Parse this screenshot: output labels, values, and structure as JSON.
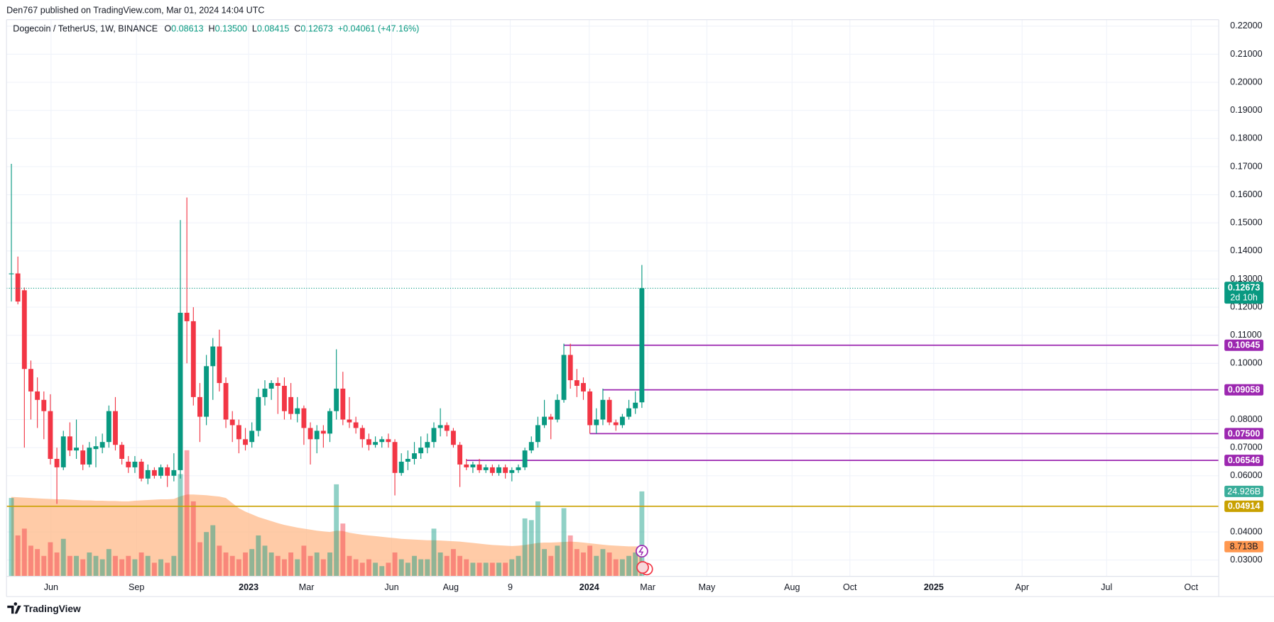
{
  "header": {
    "published": "Den767 published on TradingView.com, Mar 01, 2024 14:04 UTC"
  },
  "chart_data": {
    "type": "candlestick",
    "legend": {
      "symbol": "Dogecoin / TetherUS, 1W, BINANCE",
      "items": [
        {
          "key": "O",
          "value": "0.08613"
        },
        {
          "key": "H",
          "value": "0.13500"
        },
        {
          "key": "L",
          "value": "0.08415"
        },
        {
          "key": "C",
          "value": "0.12673"
        }
      ],
      "change": "+0.04061 (+47.16%)"
    },
    "up_color": "#089981",
    "down_color": "#f23645",
    "candles": {
      "open": [
        0.132,
        0.132,
        0.126,
        0.098,
        0.09,
        0.087,
        0.083,
        0.066,
        0.063,
        0.074,
        0.069,
        0.069,
        0.064,
        0.0695,
        0.07,
        0.072,
        0.083,
        0.071,
        0.065,
        0.063,
        0.065,
        0.059,
        0.062,
        0.06,
        0.063,
        0.06,
        0.062,
        0.118,
        0.115,
        0.088,
        0.081,
        0.099,
        0.106,
        0.093,
        0.08,
        0.078,
        0.073,
        0.072,
        0.076,
        0.088,
        0.091,
        0.093,
        0.092,
        0.088,
        0.082,
        0.084,
        0.077,
        0.073,
        0.076,
        0.075,
        0.083,
        0.091,
        0.08,
        0.079,
        0.077,
        0.073,
        0.071,
        0.072,
        0.073,
        0.072,
        0.061,
        0.065,
        0.066,
        0.068,
        0.07,
        0.072,
        0.077,
        0.078,
        0.076,
        0.071,
        0.064,
        0.063,
        0.064,
        0.062,
        0.063,
        0.061,
        0.063,
        0.061,
        0.062,
        0.063,
        0.069,
        0.072,
        0.078,
        0.081,
        0.08,
        0.087,
        0.103,
        0.094,
        0.093,
        0.09,
        0.078,
        0.08,
        0.087,
        0.079,
        0.078,
        0.081,
        0.084,
        0.08613
      ],
      "high": [
        0.171,
        0.138,
        0.127,
        0.101,
        0.095,
        0.09,
        0.089,
        0.07,
        0.076,
        0.079,
        0.08,
        0.071,
        0.072,
        0.074,
        0.075,
        0.085,
        0.088,
        0.072,
        0.067,
        0.067,
        0.066,
        0.064,
        0.063,
        0.064,
        0.064,
        0.068,
        0.151,
        0.159,
        0.12,
        0.093,
        0.103,
        0.109,
        0.112,
        0.095,
        0.083,
        0.08,
        0.077,
        0.079,
        0.091,
        0.094,
        0.094,
        0.095,
        0.095,
        0.093,
        0.088,
        0.085,
        0.079,
        0.078,
        0.078,
        0.084,
        0.105,
        0.097,
        0.088,
        0.081,
        0.078,
        0.075,
        0.074,
        0.074,
        0.075,
        0.073,
        0.068,
        0.069,
        0.072,
        0.074,
        0.075,
        0.079,
        0.084,
        0.079,
        0.077,
        0.072,
        0.066,
        0.065,
        0.066,
        0.064,
        0.064,
        0.064,
        0.064,
        0.063,
        0.064,
        0.07,
        0.074,
        0.081,
        0.087,
        0.082,
        0.089,
        0.107,
        0.107,
        0.098,
        0.095,
        0.091,
        0.084,
        0.091,
        0.088,
        0.08,
        0.082,
        0.087,
        0.09,
        0.135
      ],
      "low": [
        0.122,
        0.121,
        0.07,
        0.08,
        0.077,
        0.073,
        0.064,
        0.05,
        0.062,
        0.067,
        0.066,
        0.062,
        0.063,
        0.063,
        0.068,
        0.07,
        0.069,
        0.064,
        0.061,
        0.061,
        0.058,
        0.057,
        0.059,
        0.059,
        0.056,
        0.058,
        0.059,
        0.1,
        0.085,
        0.072,
        0.078,
        0.087,
        0.09,
        0.077,
        0.072,
        0.068,
        0.069,
        0.07,
        0.074,
        0.085,
        0.087,
        0.082,
        0.08,
        0.08,
        0.079,
        0.071,
        0.064,
        0.068,
        0.07,
        0.072,
        0.08,
        0.078,
        0.077,
        0.075,
        0.07,
        0.069,
        0.07,
        0.07,
        0.07,
        0.053,
        0.06,
        0.062,
        0.064,
        0.066,
        0.068,
        0.07,
        0.074,
        0.074,
        0.07,
        0.056,
        0.062,
        0.061,
        0.061,
        0.061,
        0.06,
        0.06,
        0.059,
        0.058,
        0.061,
        0.062,
        0.068,
        0.07,
        0.077,
        0.073,
        0.079,
        0.086,
        0.091,
        0.088,
        0.087,
        0.075,
        0.075,
        0.078,
        0.078,
        0.076,
        0.077,
        0.08,
        0.082,
        0.08415
      ],
      "close": [
        0.132,
        0.122,
        0.098,
        0.09,
        0.087,
        0.083,
        0.066,
        0.063,
        0.074,
        0.069,
        0.07,
        0.064,
        0.07,
        0.0705,
        0.072,
        0.083,
        0.071,
        0.066,
        0.063,
        0.065,
        0.059,
        0.062,
        0.06,
        0.063,
        0.06,
        0.062,
        0.118,
        0.115,
        0.088,
        0.081,
        0.099,
        0.106,
        0.093,
        0.08,
        0.078,
        0.073,
        0.071,
        0.076,
        0.088,
        0.091,
        0.093,
        0.092,
        0.083,
        0.082,
        0.084,
        0.077,
        0.073,
        0.076,
        0.075,
        0.083,
        0.091,
        0.08,
        0.079,
        0.077,
        0.073,
        0.071,
        0.072,
        0.073,
        0.072,
        0.061,
        0.065,
        0.066,
        0.068,
        0.07,
        0.072,
        0.077,
        0.078,
        0.076,
        0.071,
        0.064,
        0.063,
        0.064,
        0.062,
        0.063,
        0.061,
        0.063,
        0.061,
        0.062,
        0.063,
        0.069,
        0.072,
        0.078,
        0.081,
        0.08,
        0.087,
        0.103,
        0.094,
        0.092,
        0.09,
        0.078,
        0.08,
        0.087,
        0.079,
        0.078,
        0.081,
        0.084,
        0.086,
        0.12673
      ]
    },
    "volume": [
      23,
      12,
      14,
      9,
      8,
      6,
      10,
      7,
      11,
      6,
      6,
      5,
      7,
      6,
      5,
      8,
      6,
      5,
      6,
      5,
      7,
      6,
      4,
      5,
      4,
      6,
      30,
      37,
      22,
      10,
      13,
      15,
      9,
      7,
      6,
      5,
      7,
      8,
      12,
      9,
      7,
      6,
      5,
      7,
      5,
      9,
      6,
      7,
      5,
      7,
      27,
      15.5,
      6,
      5,
      4,
      5,
      4,
      3,
      4,
      7,
      5,
      4,
      6,
      5,
      5,
      14,
      7,
      6,
      8,
      6,
      5,
      4,
      4,
      4,
      4,
      4,
      4,
      5,
      6,
      17,
      16.5,
      22,
      8,
      6,
      9,
      20,
      12,
      8,
      7,
      9,
      6,
      8,
      7,
      5,
      5,
      6,
      7,
      24.926
    ],
    "volume_ma": [
      23.3,
      23.2,
      23.1,
      23,
      22.9,
      22.8,
      22.7,
      22.6,
      22.6,
      22.5,
      22.4,
      22.3,
      22.3,
      22.2,
      22.2,
      22.1,
      22.1,
      22,
      22,
      22.2,
      22.3,
      22.4,
      22.5,
      22.6,
      22.6,
      22.7,
      23.5,
      24,
      24,
      23.9,
      23.8,
      23.6,
      23.4,
      23,
      21.5,
      20,
      19,
      18.2,
      17.4,
      16.8,
      16.2,
      15.6,
      15.1,
      14.7,
      14.3,
      14,
      13.7,
      13.4,
      13.2,
      13,
      13.4,
      13.3,
      12.8,
      12.5,
      12.2,
      12,
      11.8,
      11.6,
      11.4,
      11.2,
      11,
      10.9,
      10.8,
      10.7,
      10.6,
      10.6,
      10.5,
      10.4,
      10.3,
      10.2,
      10,
      9.8,
      9.6,
      9.4,
      9.2,
      9.1,
      9,
      8.9,
      9,
      9.2,
      9.5,
      9.8,
      9.9,
      9.9,
      10,
      10.1,
      10.2,
      10.1,
      9.9,
      9.7,
      9.5,
      9.3,
      9.1,
      9,
      8.9,
      8.8,
      8.8,
      8.713
    ],
    "volume_ma_color": "#ffb98a",
    "volume_last_label": "24.926B",
    "volume_ma_last_label": "8.713B",
    "last_price": {
      "value": 0.12673,
      "label": "0.12673",
      "countdown": "2d 10h"
    },
    "levels": [
      {
        "value": 0.10645,
        "label": "0.10645",
        "from": 85,
        "color": "#9c27b0"
      },
      {
        "value": 0.09058,
        "label": "0.09058",
        "from": 91,
        "color": "#9c27b0"
      },
      {
        "value": 0.075,
        "label": "0.07500",
        "from": 89,
        "color": "#9c27b0"
      },
      {
        "value": 0.06546,
        "label": "0.06546",
        "from": 70,
        "color": "#9c27b0"
      },
      {
        "value": 0.04914,
        "label": "0.04914",
        "from": -0.75,
        "color": "#c9a100"
      }
    ],
    "xlim": [
      -0.75,
      185.75
    ],
    "xticks": [
      {
        "value": 6.1,
        "label": "Jun"
      },
      {
        "value": 19.25,
        "label": "Sep"
      },
      {
        "value": 36.5,
        "label": "2023"
      },
      {
        "value": 45.4,
        "label": "Mar"
      },
      {
        "value": 58.5,
        "label": "Jun"
      },
      {
        "value": 67.6,
        "label": "Aug"
      },
      {
        "value": 76.75,
        "label": "9"
      },
      {
        "value": 88.9,
        "label": "2024"
      },
      {
        "value": 97.9,
        "label": "Mar"
      },
      {
        "value": 107,
        "label": "May"
      },
      {
        "value": 120.1,
        "label": "Aug"
      },
      {
        "value": 129,
        "label": "Oct"
      },
      {
        "value": 141.9,
        "label": "2025"
      },
      {
        "value": 155.5,
        "label": "Apr"
      },
      {
        "value": 168.5,
        "label": "Jul"
      },
      {
        "value": 181.5,
        "label": "Oct"
      }
    ],
    "ylim": [
      0.0242,
      0.2223
    ],
    "yticks": [
      {
        "value": 0.22,
        "label": "0.22000"
      },
      {
        "value": 0.21,
        "label": "0.21000"
      },
      {
        "value": 0.2,
        "label": "0.20000"
      },
      {
        "value": 0.19,
        "label": "0.19000"
      },
      {
        "value": 0.18,
        "label": "0.18000"
      },
      {
        "value": 0.17,
        "label": "0.17000"
      },
      {
        "value": 0.16,
        "label": "0.16000"
      },
      {
        "value": 0.15,
        "label": "0.15000"
      },
      {
        "value": 0.14,
        "label": "0.14000"
      },
      {
        "value": 0.13,
        "label": "0.13000"
      },
      {
        "value": 0.12,
        "label": "0.12000"
      },
      {
        "value": 0.11,
        "label": "0.11000"
      },
      {
        "value": 0.1,
        "label": "0.10000"
      },
      {
        "value": 0.08,
        "label": "0.08000"
      },
      {
        "value": 0.07,
        "label": "0.07000"
      },
      {
        "value": 0.06,
        "label": "0.06000"
      },
      {
        "value": 0.04,
        "label": "0.04000"
      },
      {
        "value": 0.03,
        "label": "0.03000"
      }
    ],
    "grid": true
  },
  "footer": {
    "brand": "TradingView"
  }
}
